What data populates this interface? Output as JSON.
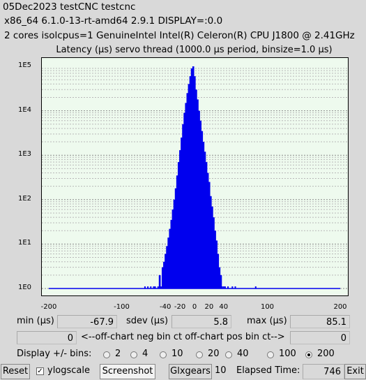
{
  "info": {
    "line1": "05Dec2023 testCNC testcnc",
    "line2": "x86_64  6.1.0-13-rt-amd64  2.9.1  DISPLAY=:0.0",
    "line3": "2 cores  isolcpus=1   GenuineIntel  Intel(R) Celeron(R) CPU J1800 @ 2.41GHz"
  },
  "chart_data": {
    "type": "bar",
    "title": "Latency (µs) servo thread (1000.0 µs period, binsize=1.0 µs)",
    "yscale": "log",
    "ylim": [
      1,
      100000
    ],
    "xlim": [
      -200,
      200
    ],
    "y_tick_labels": [
      "1E5",
      "1E4",
      "1E3",
      "1E2",
      "1E1",
      "1E0"
    ],
    "x_tick_labels": [
      "-200",
      "-100",
      "-40",
      "-20",
      "0",
      "20",
      "40",
      "100",
      "200"
    ],
    "bar_color": "#0000ee",
    "grid": true,
    "x": [
      -68,
      -66,
      -64,
      -62,
      -60,
      -58,
      -56,
      -54,
      -52,
      -50,
      -48,
      -46,
      -44,
      -42,
      -40,
      -38,
      -36,
      -34,
      -32,
      -30,
      -28,
      -26,
      -24,
      -22,
      -20,
      -18,
      -16,
      -14,
      -12,
      -10,
      -8,
      -6,
      -4,
      -2,
      0,
      2,
      4,
      6,
      8,
      10,
      12,
      14,
      16,
      18,
      20,
      22,
      24,
      26,
      28,
      30,
      32,
      34,
      36,
      38,
      40,
      42,
      44,
      46,
      48,
      50,
      52,
      54,
      56,
      58,
      60,
      62,
      64,
      66,
      68,
      70,
      72,
      74,
      76,
      78,
      80,
      82,
      84
    ],
    "values": [
      1,
      0,
      1,
      0,
      1,
      0,
      1,
      1,
      0,
      1,
      2,
      1,
      3,
      4,
      6,
      9,
      14,
      22,
      35,
      60,
      100,
      180,
      350,
      700,
      1300,
      2500,
      5000,
      9000,
      15000,
      25000,
      40000,
      60000,
      90000,
      100000,
      60000,
      30000,
      18000,
      10000,
      6000,
      3500,
      2000,
      1200,
      700,
      400,
      250,
      120,
      70,
      40,
      20,
      12,
      6,
      3,
      2,
      1,
      1,
      1,
      0,
      1,
      0,
      0,
      1,
      0,
      1,
      0,
      0,
      0,
      0,
      0,
      0,
      0,
      0,
      0,
      0,
      0,
      0,
      0,
      1
    ],
    "baseline_value": 1
  },
  "stats": {
    "min_label": "min (µs)",
    "min_value": "-67.9",
    "sdev_label": "sdev (µs)",
    "sdev_value": "5.8",
    "max_label": "max (µs)",
    "max_value": "85.1",
    "neg_count": "0",
    "offchart_label": "<--off-chart neg bin ct   off-chart pos bin ct-->",
    "pos_count": "0"
  },
  "bins": {
    "label": "Display +/- bins:",
    "options": [
      "2",
      "4",
      "10",
      "20",
      "40",
      "100",
      "200"
    ],
    "selected": "200"
  },
  "bottom": {
    "reset": "Reset",
    "ylogscale": "ylogscale",
    "ylogscale_checked": true,
    "screenshot": "Screenshot",
    "glxgears": "Glxgears",
    "glxgears_value": "10",
    "elapsed_label": "Elapsed Time:",
    "elapsed_value": "746",
    "exit": "Exit"
  }
}
